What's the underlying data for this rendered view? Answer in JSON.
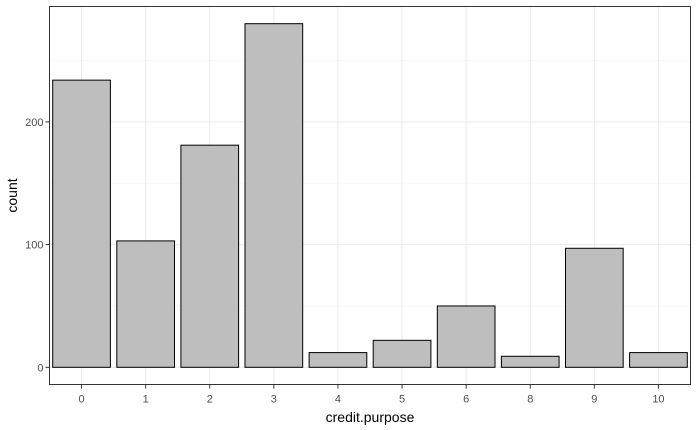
{
  "chart_data": {
    "type": "bar",
    "xlabel": "credit.purpose",
    "ylabel": "count",
    "categories": [
      "0",
      "1",
      "2",
      "3",
      "4",
      "5",
      "6",
      "8",
      "9",
      "10"
    ],
    "values": [
      234,
      103,
      181,
      280,
      12,
      22,
      50,
      9,
      97,
      12
    ],
    "y_ticks": [
      0,
      100,
      200
    ],
    "ylim": [
      -14,
      294
    ],
    "grid": true,
    "legend": "none",
    "colors": {
      "bar_fill": "#bebebe",
      "bar_stroke": "#000000",
      "grid_major": "#ebebeb",
      "grid_minor": "#f5f5f5",
      "panel_border": "#333333",
      "tick_text": "#4d4d4d",
      "title_text": "#000000"
    }
  }
}
